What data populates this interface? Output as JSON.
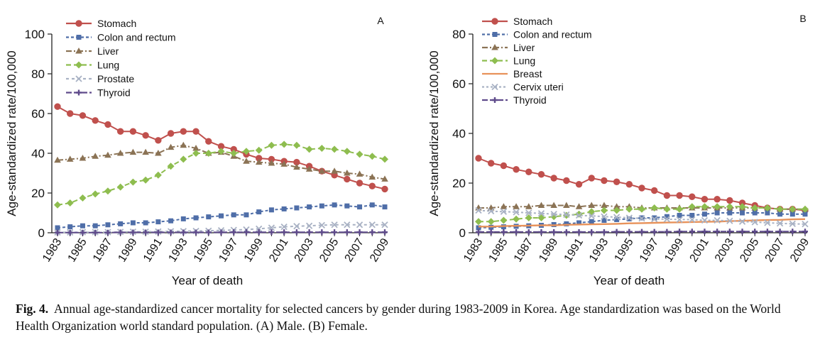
{
  "caption": {
    "label": "Fig. 4.",
    "text": "Annual age-standardized cancer mortality for selected cancers by gender during 1983-2009 in Korea. Age standardization was based on the World Health Organization world standard population. (A) Male. (B) Female."
  },
  "chart_data": [
    {
      "panel": "A",
      "type": "line",
      "xlabel": "Year of death",
      "ylabel": "Age-standardized rate/100,000",
      "ylim": [
        0,
        100
      ],
      "yticks": [
        0,
        20,
        40,
        60,
        80,
        100
      ],
      "xticks": [
        "1983",
        "1985",
        "1987",
        "1989",
        "1991",
        "1993",
        "1995",
        "1997",
        "1999",
        "2001",
        "2003",
        "2005",
        "2007",
        "2009"
      ],
      "x": [
        1983,
        1984,
        1985,
        1986,
        1987,
        1988,
        1989,
        1990,
        1991,
        1992,
        1993,
        1994,
        1995,
        1996,
        1997,
        1998,
        1999,
        2000,
        2001,
        2002,
        2003,
        2004,
        2005,
        2006,
        2007,
        2008,
        2009
      ],
      "legend_position": "top-left",
      "series": [
        {
          "name": "Stomach",
          "color": "#c0504d",
          "dash": "solid",
          "marker": "circle",
          "values": [
            63.5,
            60,
            59,
            56.5,
            54.5,
            51,
            51,
            49,
            46.5,
            50,
            51,
            51,
            46,
            43.5,
            42,
            39.5,
            37.5,
            37,
            36,
            35.5,
            33.5,
            31,
            29,
            27,
            25,
            23.5,
            22
          ]
        },
        {
          "name": "Colon and rectum",
          "color": "#4f6ea8",
          "dash": "4,3",
          "marker": "square",
          "values": [
            2.5,
            3,
            3.5,
            3.5,
            4,
            4.5,
            5,
            5,
            5.5,
            6,
            7,
            7.5,
            8,
            8.5,
            9,
            9,
            10.5,
            11.5,
            12,
            12.5,
            13,
            13.5,
            14,
            13.5,
            13,
            14,
            13
          ]
        },
        {
          "name": "Liver",
          "color": "#8b7355",
          "dash": "8,3,2,3",
          "marker": "triangle",
          "values": [
            36.5,
            37,
            37.5,
            38.5,
            39,
            40,
            40.5,
            40.5,
            40,
            43,
            44,
            42.5,
            40,
            40.5,
            38.5,
            36,
            35.5,
            35,
            34.5,
            33,
            32,
            31,
            31,
            30,
            29.5,
            28,
            27
          ]
        },
        {
          "name": "Lung",
          "color": "#8ebd4f",
          "dash": "7,4",
          "marker": "diamond",
          "values": [
            14,
            15,
            17.5,
            19.5,
            21,
            23,
            25.5,
            26.5,
            29,
            33.5,
            37,
            40,
            40,
            41,
            40,
            41,
            41.5,
            44,
            44.5,
            44,
            42,
            42.5,
            42,
            41,
            39.5,
            38.5,
            37
          ]
        },
        {
          "name": "Prostate",
          "color": "#a9b2c4",
          "dash": "4,4",
          "marker": "x",
          "values": [
            0.2,
            0.2,
            0.3,
            0.3,
            0.3,
            0.4,
            0.5,
            0.5,
            0.6,
            0.7,
            0.8,
            0.9,
            1,
            1.2,
            1.4,
            1.6,
            2,
            2.5,
            3,
            3.3,
            3.5,
            3.8,
            4,
            4,
            4,
            4,
            4
          ]
        },
        {
          "name": "Thyroid",
          "color": "#5f4b8b",
          "dash": "8,3",
          "marker": "plus",
          "values": [
            0.1,
            0.1,
            0.1,
            0.1,
            0.1,
            0.2,
            0.2,
            0.2,
            0.2,
            0.2,
            0.2,
            0.2,
            0.2,
            0.2,
            0.3,
            0.3,
            0.3,
            0.3,
            0.3,
            0.3,
            0.3,
            0.3,
            0.3,
            0.3,
            0.3,
            0.3,
            0.3
          ]
        }
      ]
    },
    {
      "panel": "B",
      "type": "line",
      "xlabel": "Year of death",
      "ylabel": "Age-standardized rate/100,000",
      "ylim": [
        0,
        80
      ],
      "yticks": [
        0,
        20,
        40,
        60,
        80
      ],
      "xticks": [
        "1983",
        "1985",
        "1987",
        "1989",
        "1991",
        "1993",
        "1995",
        "1997",
        "1999",
        "2001",
        "2003",
        "2005",
        "2007",
        "2009"
      ],
      "x": [
        1983,
        1984,
        1985,
        1986,
        1987,
        1988,
        1989,
        1990,
        1991,
        1992,
        1993,
        1994,
        1995,
        1996,
        1997,
        1998,
        1999,
        2000,
        2001,
        2002,
        2003,
        2004,
        2005,
        2006,
        2007,
        2008,
        2009
      ],
      "legend_position": "top-left",
      "series": [
        {
          "name": "Stomach",
          "color": "#c0504d",
          "dash": "solid",
          "marker": "circle",
          "values": [
            30,
            28,
            27,
            25.5,
            24.5,
            23.5,
            22,
            21,
            19.5,
            22,
            21,
            20.5,
            19.5,
            18,
            17,
            15,
            15,
            14.5,
            13.5,
            13.5,
            13,
            12,
            11,
            10,
            9.5,
            9.5,
            9
          ]
        },
        {
          "name": "Colon and rectum",
          "color": "#4f6ea8",
          "dash": "4,3",
          "marker": "square",
          "values": [
            2,
            2.2,
            2.4,
            2.6,
            2.8,
            3,
            3.3,
            3.6,
            4,
            4.5,
            5,
            5.3,
            5.6,
            6,
            6,
            6.5,
            7,
            7,
            7.5,
            8,
            8,
            8,
            8,
            8,
            7.5,
            7.5,
            7.5
          ]
        },
        {
          "name": "Liver",
          "color": "#8b7355",
          "dash": "8,3,2,3",
          "marker": "triangle",
          "values": [
            10,
            10,
            10.5,
            10.5,
            10.5,
            11,
            11,
            11,
            10.5,
            11,
            11,
            10.5,
            10.5,
            10,
            10,
            10,
            10,
            10,
            10,
            10,
            10,
            10,
            10,
            10,
            9.5,
            9.5,
            9.5
          ]
        },
        {
          "name": "Lung",
          "color": "#8ebd4f",
          "dash": "7,4",
          "marker": "diamond",
          "values": [
            4.5,
            4.5,
            5,
            5.5,
            6,
            6,
            6.5,
            7,
            7.5,
            8.5,
            9,
            9,
            9.5,
            9.5,
            10,
            9.5,
            9.5,
            10.5,
            10.5,
            10.5,
            10.5,
            10.5,
            10,
            10,
            9.5,
            9.5,
            9.5
          ]
        },
        {
          "name": "Breast",
          "color": "#e8925a",
          "dash": "solid",
          "marker": "none",
          "values": [
            2.5,
            2.5,
            2.7,
            2.8,
            2.9,
            3,
            3,
            3.2,
            3.3,
            3.4,
            3.5,
            3.6,
            3.8,
            3.9,
            4,
            4.1,
            4.2,
            4.3,
            4.4,
            4.5,
            4.7,
            4.8,
            5,
            5.1,
            5.2,
            5.4,
            5.5
          ]
        },
        {
          "name": "Cervix uteri",
          "color": "#a9b2c4",
          "dash": "3,3",
          "marker": "x",
          "values": [
            9,
            8.7,
            8.5,
            8.3,
            8,
            7.8,
            7.5,
            7.3,
            7,
            6.8,
            6.5,
            6.3,
            6,
            5.8,
            5.5,
            5.5,
            5.3,
            5.3,
            5,
            5,
            4.8,
            4.5,
            4.3,
            4,
            3.8,
            3.6,
            3.5
          ]
        },
        {
          "name": "Thyroid",
          "color": "#5f4b8b",
          "dash": "8,3",
          "marker": "plus",
          "values": [
            0.3,
            0.3,
            0.3,
            0.3,
            0.3,
            0.3,
            0.3,
            0.3,
            0.3,
            0.3,
            0.3,
            0.4,
            0.4,
            0.4,
            0.4,
            0.4,
            0.5,
            0.5,
            0.5,
            0.5,
            0.5,
            0.5,
            0.5,
            0.5,
            0.5,
            0.5,
            0.5
          ]
        }
      ]
    }
  ]
}
